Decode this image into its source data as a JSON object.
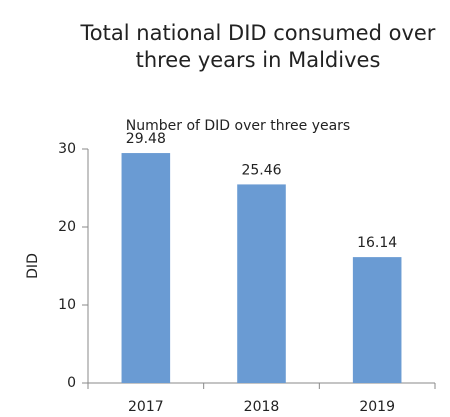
{
  "chart_data": {
    "type": "bar",
    "title": "Total national DID consumed over three years in Maldives",
    "subtitle": "Number of DID over three years",
    "y_label": "DID",
    "categories": [
      "2017",
      "2018",
      "2019"
    ],
    "values": [
      29.48,
      25.46,
      16.14
    ],
    "color": "#6a9bd3",
    "ylim": [
      0,
      30
    ],
    "yticks": [
      0,
      10,
      20,
      30
    ],
    "grid": false
  }
}
